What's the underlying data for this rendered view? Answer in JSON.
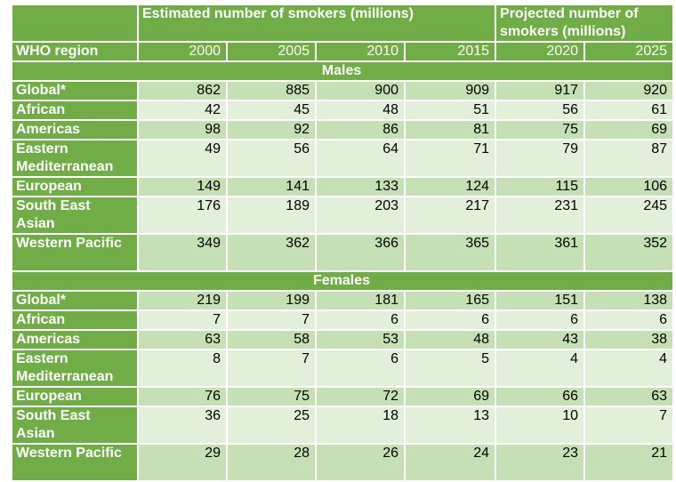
{
  "header": {
    "corner": "",
    "estimated": "Estimated number of smokers (millions)",
    "projected": "Projected number of smokers (millions)",
    "region_label": "WHO region",
    "years": [
      "2000",
      "2005",
      "2010",
      "2015",
      "2020",
      "2025"
    ]
  },
  "sections": [
    {
      "title": "Males",
      "rows": [
        {
          "region": "Global*",
          "values": [
            "862",
            "885",
            "900",
            "909",
            "917",
            "920"
          ]
        },
        {
          "region": "African",
          "values": [
            "42",
            "45",
            "48",
            "51",
            "56",
            "61"
          ]
        },
        {
          "region": "Americas",
          "values": [
            "98",
            "92",
            "86",
            "81",
            "75",
            "69"
          ]
        },
        {
          "region": "Eastern Mediterranean",
          "values": [
            "49",
            "56",
            "64",
            "71",
            "79",
            "87"
          ]
        },
        {
          "region": "European",
          "values": [
            "149",
            "141",
            "133",
            "124",
            "115",
            "106"
          ]
        },
        {
          "region": "South East Asian",
          "values": [
            "176",
            "189",
            "203",
            "217",
            "231",
            "245"
          ]
        },
        {
          "region": "Western Pacific",
          "values": [
            "349",
            "362",
            "366",
            "365",
            "361",
            "352"
          ]
        }
      ]
    },
    {
      "title": "Females",
      "rows": [
        {
          "region": "Global*",
          "values": [
            "219",
            "199",
            "181",
            "165",
            "151",
            "138"
          ]
        },
        {
          "region": "African",
          "values": [
            "7",
            "7",
            "6",
            "6",
            "6",
            "6"
          ]
        },
        {
          "region": "Americas",
          "values": [
            "63",
            "58",
            "53",
            "48",
            "43",
            "38"
          ]
        },
        {
          "region": "Eastern Mediterranean",
          "values": [
            "8",
            "7",
            "6",
            "5",
            "4",
            "4"
          ]
        },
        {
          "region": "European",
          "values": [
            "76",
            "75",
            "72",
            "69",
            "66",
            "63"
          ]
        },
        {
          "region": "South East Asian",
          "values": [
            "36",
            "25",
            "18",
            "13",
            "10",
            "7"
          ]
        },
        {
          "region": "Western Pacific",
          "values": [
            "29",
            "28",
            "26",
            "24",
            "23",
            "21"
          ]
        }
      ]
    }
  ],
  "colors": {
    "header_green": "#70ad47",
    "row_dark": "#c5e0b4",
    "row_light": "#e2efd9",
    "text_white": "#ffffff",
    "text_black": "#000000"
  }
}
